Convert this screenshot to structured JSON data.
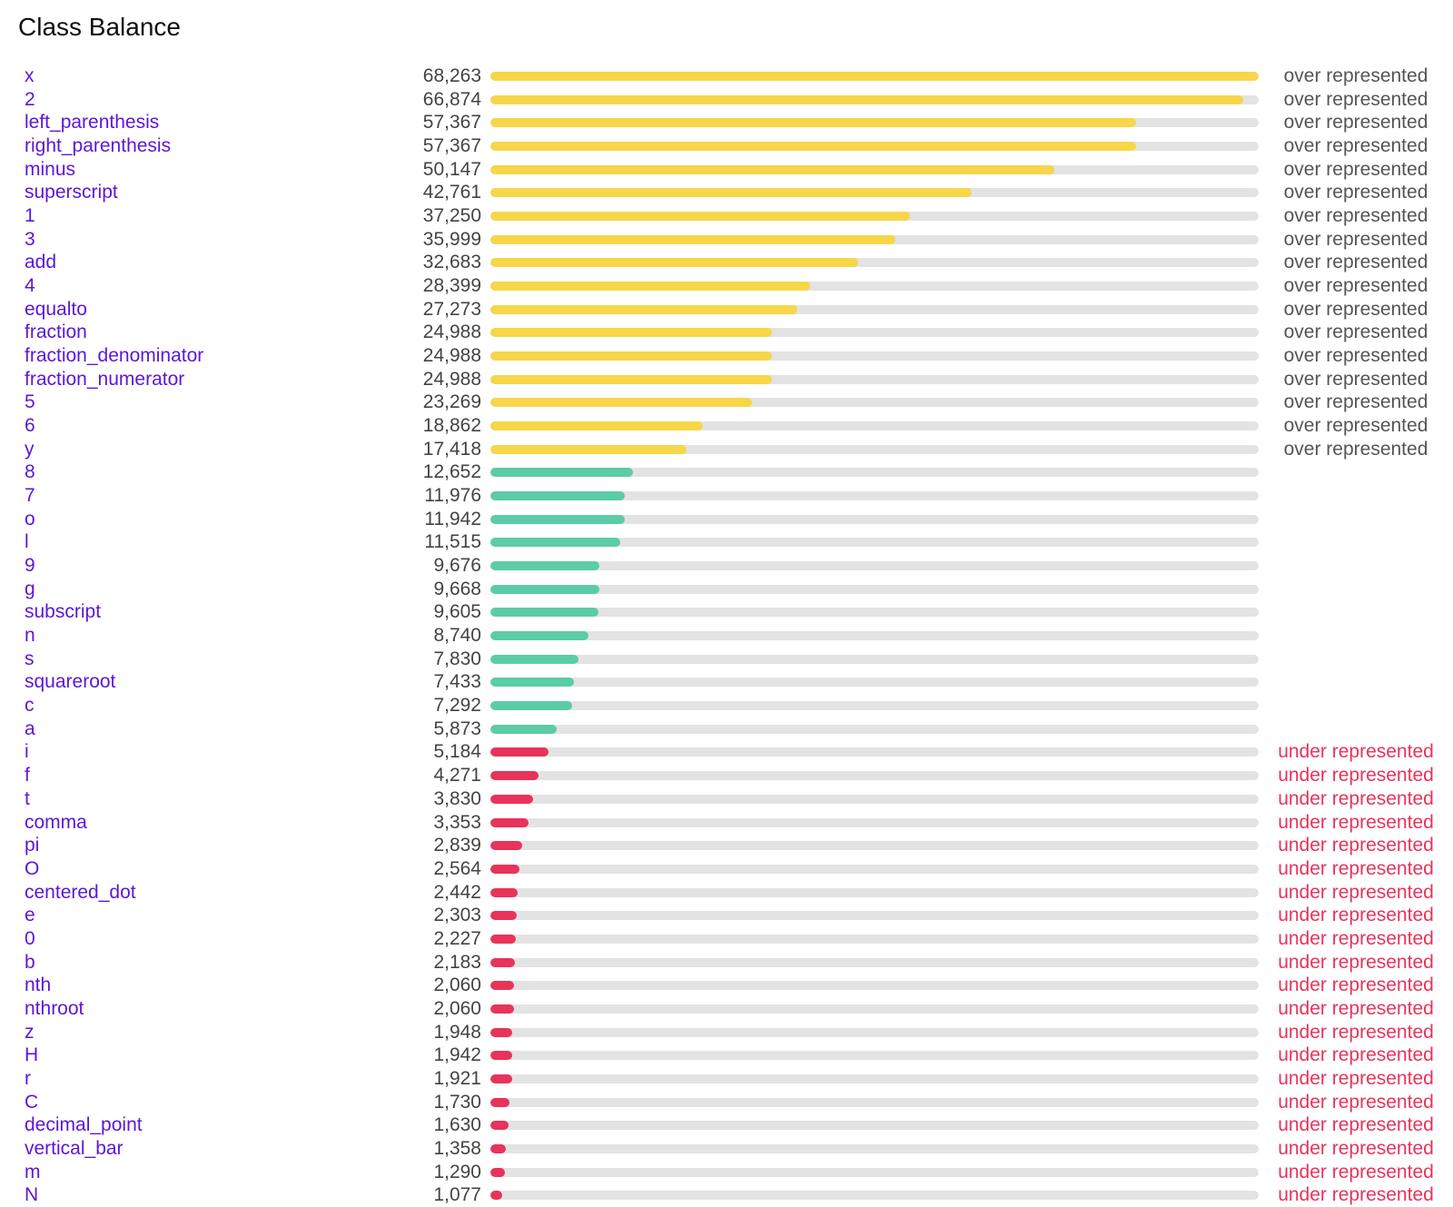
{
  "title": "Class Balance",
  "colors": {
    "over": "#f7d649",
    "balanced": "#5ccca6",
    "under": "#e8335a",
    "track": "#e3e3e3",
    "label": "#5b16d9",
    "status_over": "#555555",
    "status_under": "#e8335a"
  },
  "chart_data": {
    "type": "bar",
    "orientation": "horizontal",
    "title": "Class Balance",
    "xlim": [
      0,
      68263
    ],
    "grid": false,
    "rows": [
      {
        "label": "x",
        "value": 68263,
        "value_text": "68,263",
        "status": "over represented",
        "group": "over"
      },
      {
        "label": "2",
        "value": 66874,
        "value_text": "66,874",
        "status": "over represented",
        "group": "over"
      },
      {
        "label": "left_parenthesis",
        "value": 57367,
        "value_text": "57,367",
        "status": "over represented",
        "group": "over"
      },
      {
        "label": "right_parenthesis",
        "value": 57367,
        "value_text": "57,367",
        "status": "over represented",
        "group": "over"
      },
      {
        "label": "minus",
        "value": 50147,
        "value_text": "50,147",
        "status": "over represented",
        "group": "over"
      },
      {
        "label": "superscript",
        "value": 42761,
        "value_text": "42,761",
        "status": "over represented",
        "group": "over"
      },
      {
        "label": "1",
        "value": 37250,
        "value_text": "37,250",
        "status": "over represented",
        "group": "over"
      },
      {
        "label": "3",
        "value": 35999,
        "value_text": "35,999",
        "status": "over represented",
        "group": "over"
      },
      {
        "label": "add",
        "value": 32683,
        "value_text": "32,683",
        "status": "over represented",
        "group": "over"
      },
      {
        "label": "4",
        "value": 28399,
        "value_text": "28,399",
        "status": "over represented",
        "group": "over"
      },
      {
        "label": "equalto",
        "value": 27273,
        "value_text": "27,273",
        "status": "over represented",
        "group": "over"
      },
      {
        "label": "fraction",
        "value": 24988,
        "value_text": "24,988",
        "status": "over represented",
        "group": "over"
      },
      {
        "label": "fraction_denominator",
        "value": 24988,
        "value_text": "24,988",
        "status": "over represented",
        "group": "over"
      },
      {
        "label": "fraction_numerator",
        "value": 24988,
        "value_text": "24,988",
        "status": "over represented",
        "group": "over"
      },
      {
        "label": "5",
        "value": 23269,
        "value_text": "23,269",
        "status": "over represented",
        "group": "over"
      },
      {
        "label": "6",
        "value": 18862,
        "value_text": "18,862",
        "status": "over represented",
        "group": "over"
      },
      {
        "label": "y",
        "value": 17418,
        "value_text": "17,418",
        "status": "over represented",
        "group": "over"
      },
      {
        "label": "8",
        "value": 12652,
        "value_text": "12,652",
        "status": "",
        "group": "balanced"
      },
      {
        "label": "7",
        "value": 11976,
        "value_text": "11,976",
        "status": "",
        "group": "balanced"
      },
      {
        "label": "o",
        "value": 11942,
        "value_text": "11,942",
        "status": "",
        "group": "balanced"
      },
      {
        "label": "l",
        "value": 11515,
        "value_text": "11,515",
        "status": "",
        "group": "balanced"
      },
      {
        "label": "9",
        "value": 9676,
        "value_text": "9,676",
        "status": "",
        "group": "balanced"
      },
      {
        "label": "g",
        "value": 9668,
        "value_text": "9,668",
        "status": "",
        "group": "balanced"
      },
      {
        "label": "subscript",
        "value": 9605,
        "value_text": "9,605",
        "status": "",
        "group": "balanced"
      },
      {
        "label": "n",
        "value": 8740,
        "value_text": "8,740",
        "status": "",
        "group": "balanced"
      },
      {
        "label": "s",
        "value": 7830,
        "value_text": "7,830",
        "status": "",
        "group": "balanced"
      },
      {
        "label": "squareroot",
        "value": 7433,
        "value_text": "7,433",
        "status": "",
        "group": "balanced"
      },
      {
        "label": "c",
        "value": 7292,
        "value_text": "7,292",
        "status": "",
        "group": "balanced"
      },
      {
        "label": "a",
        "value": 5873,
        "value_text": "5,873",
        "status": "",
        "group": "balanced"
      },
      {
        "label": "i",
        "value": 5184,
        "value_text": "5,184",
        "status": "under represented",
        "group": "under"
      },
      {
        "label": "f",
        "value": 4271,
        "value_text": "4,271",
        "status": "under represented",
        "group": "under"
      },
      {
        "label": "t",
        "value": 3830,
        "value_text": "3,830",
        "status": "under represented",
        "group": "under"
      },
      {
        "label": "comma",
        "value": 3353,
        "value_text": "3,353",
        "status": "under represented",
        "group": "under"
      },
      {
        "label": "pi",
        "value": 2839,
        "value_text": "2,839",
        "status": "under represented",
        "group": "under"
      },
      {
        "label": "O",
        "value": 2564,
        "value_text": "2,564",
        "status": "under represented",
        "group": "under"
      },
      {
        "label": "centered_dot",
        "value": 2442,
        "value_text": "2,442",
        "status": "under represented",
        "group": "under"
      },
      {
        "label": "e",
        "value": 2303,
        "value_text": "2,303",
        "status": "under represented",
        "group": "under"
      },
      {
        "label": "0",
        "value": 2227,
        "value_text": "2,227",
        "status": "under represented",
        "group": "under"
      },
      {
        "label": "b",
        "value": 2183,
        "value_text": "2,183",
        "status": "under represented",
        "group": "under"
      },
      {
        "label": "nth",
        "value": 2060,
        "value_text": "2,060",
        "status": "under represented",
        "group": "under"
      },
      {
        "label": "nthroot",
        "value": 2060,
        "value_text": "2,060",
        "status": "under represented",
        "group": "under"
      },
      {
        "label": "z",
        "value": 1948,
        "value_text": "1,948",
        "status": "under represented",
        "group": "under"
      },
      {
        "label": "H",
        "value": 1942,
        "value_text": "1,942",
        "status": "under represented",
        "group": "under"
      },
      {
        "label": "r",
        "value": 1921,
        "value_text": "1,921",
        "status": "under represented",
        "group": "under"
      },
      {
        "label": "C",
        "value": 1730,
        "value_text": "1,730",
        "status": "under represented",
        "group": "under"
      },
      {
        "label": "decimal_point",
        "value": 1630,
        "value_text": "1,630",
        "status": "under represented",
        "group": "under"
      },
      {
        "label": "vertical_bar",
        "value": 1358,
        "value_text": "1,358",
        "status": "under represented",
        "group": "under"
      },
      {
        "label": "m",
        "value": 1290,
        "value_text": "1,290",
        "status": "under represented",
        "group": "under"
      },
      {
        "label": "N",
        "value": 1077,
        "value_text": "1,077",
        "status": "under represented",
        "group": "under"
      }
    ]
  }
}
